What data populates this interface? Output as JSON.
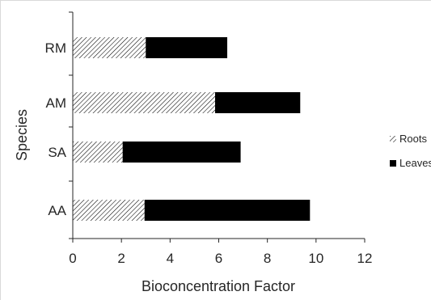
{
  "chart_data": {
    "type": "bar",
    "orientation": "horizontal",
    "stacked": true,
    "title": "",
    "xlabel": "Bioconcentration Factor",
    "ylabel": "Species",
    "categories": [
      "RM",
      "AM",
      "SA",
      "AA"
    ],
    "series": [
      {
        "name": "Roots",
        "values": [
          3.0,
          5.85,
          2.05,
          2.95
        ],
        "fill": "hatch"
      },
      {
        "name": "Leaves",
        "values": [
          3.35,
          3.5,
          4.85,
          6.8
        ],
        "fill": "solid"
      }
    ],
    "xlim": [
      0,
      12
    ],
    "xticks": [
      "0",
      "2",
      "4",
      "6",
      "8",
      "10",
      "12"
    ],
    "grid": false,
    "legend": {
      "placement": "right",
      "labels": [
        "Roots",
        "Leaves"
      ]
    },
    "colors": {
      "leaves": "#000000",
      "roots_hatch": "#000000",
      "axis": "#262626"
    }
  }
}
